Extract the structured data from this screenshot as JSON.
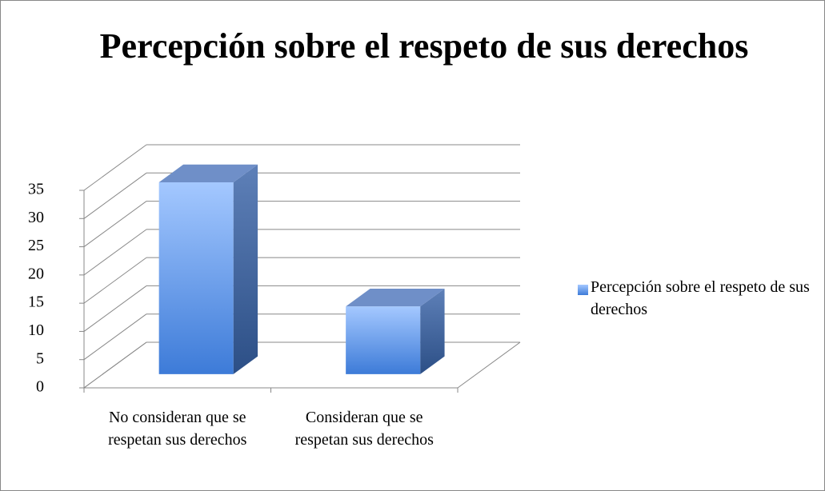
{
  "chart_data": {
    "type": "bar3d",
    "title": "Percepción sobre el respeto de sus derechos",
    "categories": [
      "No consideran que se respetan sus derechos",
      "Consideran que se respetan sus derechos"
    ],
    "series": [
      {
        "name": "Percepción sobre el respeto de sus derechos",
        "color": "#4f86dc",
        "values": [
          34,
          12
        ]
      }
    ],
    "ylim": [
      0,
      35
    ],
    "yticks": [
      0,
      5,
      10,
      15,
      20,
      25,
      30,
      35
    ],
    "grid": true,
    "legend": "right"
  }
}
